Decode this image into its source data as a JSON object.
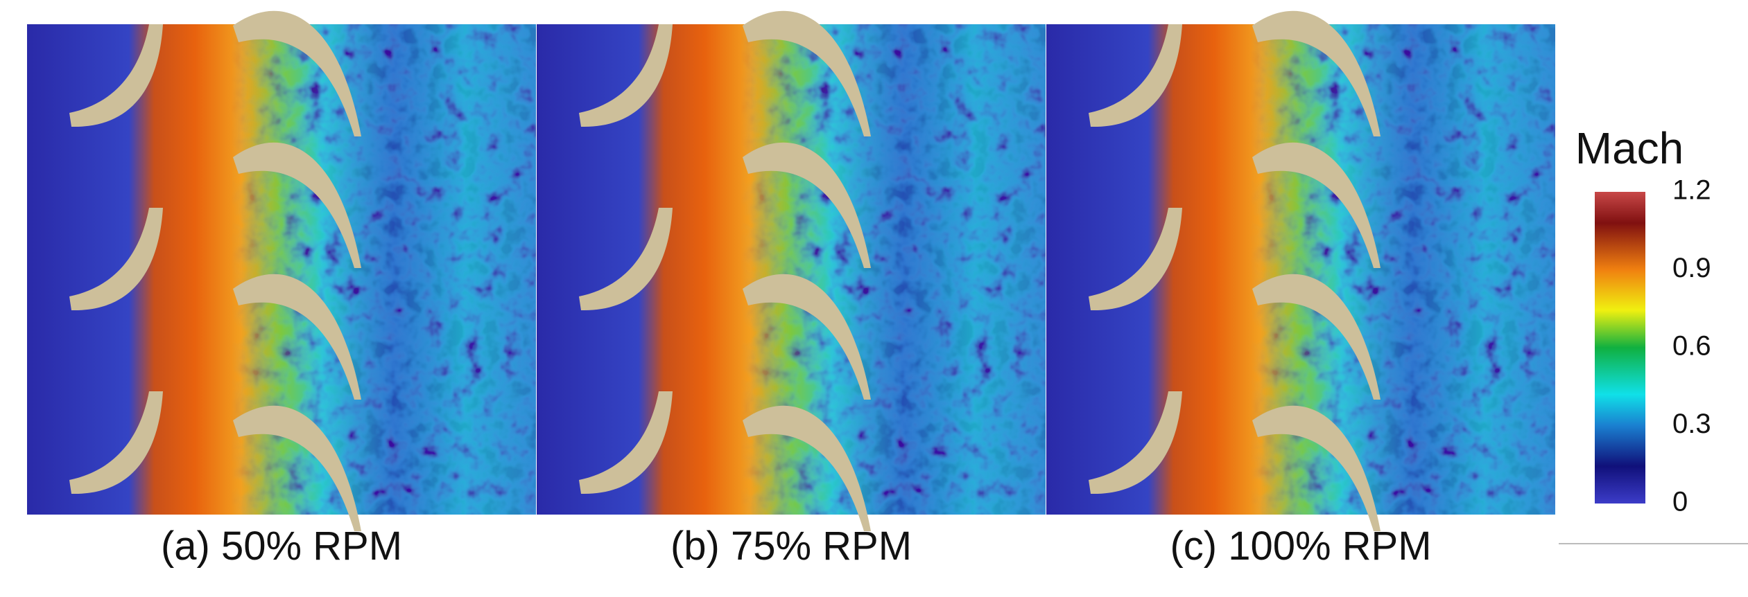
{
  "panels": [
    {
      "caption": "(a) 50% RPM"
    },
    {
      "caption": "(b) 75% RPM"
    },
    {
      "caption": "(c) 100% RPM"
    }
  ],
  "colorbar": {
    "title": "Mach",
    "lim": [
      0,
      1.2
    ],
    "ticks": [
      0,
      0.3,
      0.6,
      0.9,
      1.2
    ]
  }
}
